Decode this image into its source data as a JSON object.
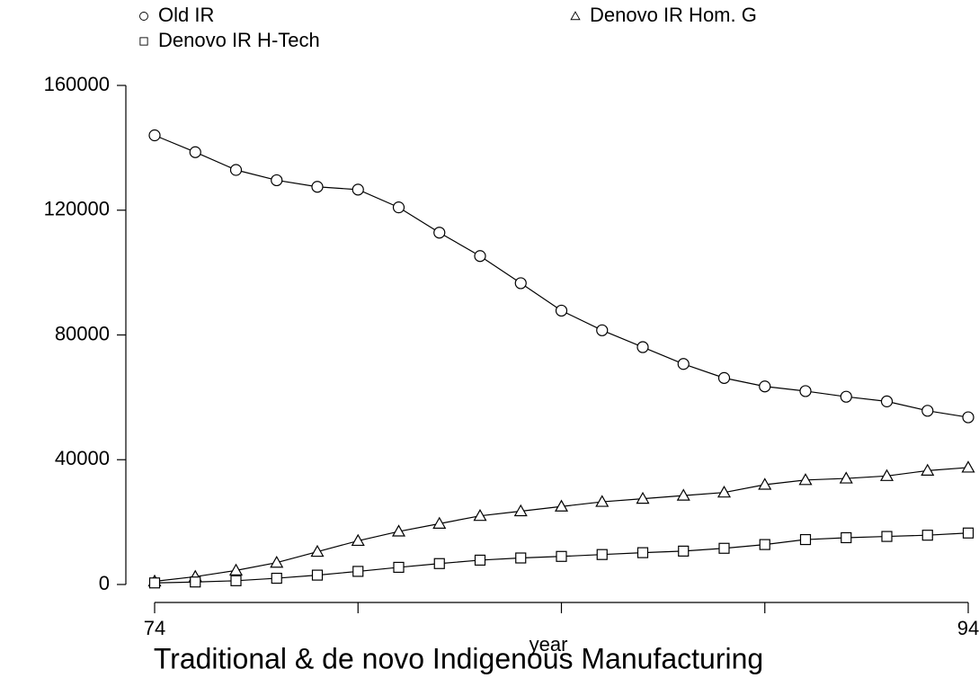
{
  "chart_data": {
    "type": "line",
    "title": "Traditional & de novo Indigenous Manufacturing",
    "x_label": "year",
    "x": [
      74,
      75,
      76,
      77,
      78,
      79,
      80,
      81,
      82,
      83,
      84,
      85,
      86,
      87,
      88,
      89,
      90,
      91,
      92,
      93,
      94
    ],
    "series": [
      {
        "name": "Old IR",
        "color": "#000000",
        "marker": "circle",
        "values": [
          144000,
          138600,
          132900,
          129600,
          127500,
          126600,
          120900,
          112800,
          105300,
          96600,
          87800,
          81500,
          76100,
          70700,
          66200,
          63500,
          62000,
          60200,
          58700,
          55700,
          53600
        ]
      },
      {
        "name": "Denovo IR Hom. G",
        "color": "#000000",
        "marker": "triangle",
        "values": [
          1000,
          2500,
          4500,
          7000,
          10500,
          14000,
          17000,
          19500,
          22000,
          23500,
          25000,
          26500,
          27500,
          28500,
          29500,
          32000,
          33500,
          34000,
          34800,
          36500,
          37500
        ]
      },
      {
        "name": "Denovo IR H-Tech",
        "color": "#000000",
        "marker": "square",
        "values": [
          500,
          800,
          1200,
          2000,
          3000,
          4200,
          5500,
          6700,
          7800,
          8500,
          9000,
          9600,
          10200,
          10700,
          11600,
          12800,
          14400,
          15000,
          15400,
          15800,
          16500
        ]
      }
    ],
    "xlim": [
      74,
      94
    ],
    "xticks": [
      74,
      94
    ],
    "x_minor_ticks": [
      79,
      84,
      89
    ],
    "ylim": [
      0,
      160000
    ],
    "yticks": [
      0,
      40000,
      80000,
      120000,
      160000
    ],
    "grid": false
  }
}
